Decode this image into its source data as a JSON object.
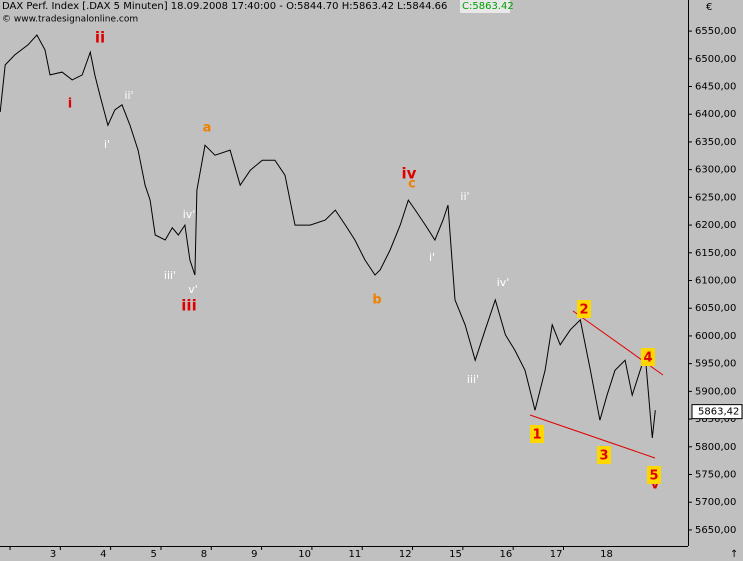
{
  "chart_data": {
    "type": "line",
    "title": "DAX Perf. Index [.DAX  5 Minuten] 18.09.2008 17:40:00 - O:5844.70 H:5863.42 L:5844.66",
    "close_label": "C:5863.42",
    "source": "© www.tradesignalonline.com",
    "currency": "€",
    "corner_arrow": "↑",
    "color": "#000000",
    "x": [
      -0.05,
      0.05,
      0.24,
      0.5,
      0.68,
      0.84,
      0.94,
      1.18,
      1.38,
      1.58,
      1.74,
      1.83,
      1.93,
      2.09,
      2.23,
      2.37,
      2.53,
      2.69,
      2.83,
      2.93,
      3.03,
      3.23,
      3.37,
      3.49,
      3.62,
      3.72,
      3.82,
      3.86,
      4.02,
      4.22,
      4.52,
      4.72,
      4.92,
      5.16,
      5.41,
      5.61,
      5.81,
      6.11,
      6.41,
      6.61,
      6.81,
      7.0,
      7.2,
      7.4,
      7.5,
      7.7,
      7.9,
      8.06,
      8.2,
      8.4,
      8.59,
      8.75,
      8.85,
      8.93,
      8.99,
      9.19,
      9.39,
      9.59,
      9.79,
      9.99,
      10.18,
      10.38,
      10.58,
      10.78,
      10.92,
      11.08,
      11.28,
      11.48,
      11.68,
      11.87,
      12.01,
      12.17,
      12.37,
      12.51,
      12.67,
      12.77,
      12.87,
      12.91,
      12.97
    ],
    "values": [
      6404,
      6489,
      6507,
      6525,
      6543,
      6516,
      6471,
      6476,
      6462,
      6471,
      6512,
      6471,
      6435,
      6380,
      6408,
      6417,
      6380,
      6335,
      6272,
      6245,
      6182,
      6173,
      6195,
      6182,
      6200,
      6137,
      6110,
      6263,
      6344,
      6326,
      6335,
      6272,
      6299,
      6317,
      6317,
      6290,
      6200,
      6200,
      6209,
      6227,
      6200,
      6173,
      6137,
      6110,
      6119,
      6155,
      6200,
      6245,
      6227,
      6200,
      6173,
      6209,
      6236,
      6137,
      6065,
      6020,
      5956,
      6011,
      6065,
      6002,
      5974,
      5938,
      5866,
      5938,
      6020,
      5984,
      6011,
      6029,
      5938,
      5848,
      5893,
      5938,
      5956,
      5893,
      5938,
      5966,
      5857,
      5816,
      5866
    ],
    "xlim": [
      -0.054,
      13.62
    ],
    "xticks": [
      {
        "value": 1,
        "label": "3"
      },
      {
        "value": 2,
        "label": "4"
      },
      {
        "value": 3,
        "label": "5"
      },
      {
        "value": 4,
        "label": "8"
      },
      {
        "value": 5,
        "label": "9"
      },
      {
        "value": 6,
        "label": "10"
      },
      {
        "value": 7,
        "label": "11"
      },
      {
        "value": 8,
        "label": "12"
      },
      {
        "value": 9,
        "label": "15"
      },
      {
        "value": 10,
        "label": "16"
      },
      {
        "value": 11,
        "label": "17"
      },
      {
        "value": 12,
        "label": "18"
      }
    ],
    "ylim": [
      5621,
      6579
    ],
    "yticks": [
      {
        "value": 5650,
        "label": "5650,00"
      },
      {
        "value": 5700,
        "label": "5700,00"
      },
      {
        "value": 5750,
        "label": "5750,00"
      },
      {
        "value": 5800,
        "label": "5800,00"
      },
      {
        "value": 5850,
        "label": "5850,00"
      },
      {
        "value": 5900,
        "label": "5900,00"
      },
      {
        "value": 5950,
        "label": "5950,00"
      },
      {
        "value": 6000,
        "label": "6000,00"
      },
      {
        "value": 6050,
        "label": "6050,00"
      },
      {
        "value": 6100,
        "label": "6100,00"
      },
      {
        "value": 6150,
        "label": "6150,00"
      },
      {
        "value": 6200,
        "label": "6200,00"
      },
      {
        "value": 6250,
        "label": "6250,00"
      },
      {
        "value": 6300,
        "label": "6300,00"
      },
      {
        "value": 6350,
        "label": "6350,00"
      },
      {
        "value": 6400,
        "label": "6400,00"
      },
      {
        "value": 6450,
        "label": "6450,00"
      },
      {
        "value": 6500,
        "label": "6500,00"
      },
      {
        "value": 6550,
        "label": "6550,00"
      }
    ],
    "last_value": {
      "value": 5863.42,
      "label": "5863,42"
    },
    "annotations": [
      {
        "text": "i",
        "color": "#e00000"
      },
      {
        "text": "ii",
        "color": "#e00000"
      },
      {
        "text": "iii",
        "color": "#e00000"
      },
      {
        "text": "iv",
        "color": "#e00000"
      },
      {
        "text": "v",
        "color": "#e00000"
      },
      {
        "text": "a",
        "color": "#f08000"
      },
      {
        "text": "b",
        "color": "#f08000"
      },
      {
        "text": "c",
        "color": "#f08000"
      },
      {
        "text": "ii'",
        "color": "#ffffff"
      },
      {
        "text": "i'",
        "color": "#ffffff"
      },
      {
        "text": "iv'",
        "color": "#ffffff"
      },
      {
        "text": "iii'",
        "color": "#ffffff"
      },
      {
        "text": "v'",
        "color": "#ffffff"
      },
      {
        "text": "i'",
        "color": "#ffffff"
      },
      {
        "text": "ii'",
        "color": "#ffffff"
      },
      {
        "text": "iv'",
        "color": "#ffffff"
      },
      {
        "text": "iii'",
        "color": "#ffffff"
      }
    ],
    "wave_boxes": [
      {
        "text": "1",
        "color": "#e00000"
      },
      {
        "text": "2",
        "color": "#e00000"
      },
      {
        "text": "3",
        "color": "#e00000"
      },
      {
        "text": "4",
        "color": "#e00000"
      },
      {
        "text": "5",
        "color": "#e00000"
      }
    ]
  }
}
